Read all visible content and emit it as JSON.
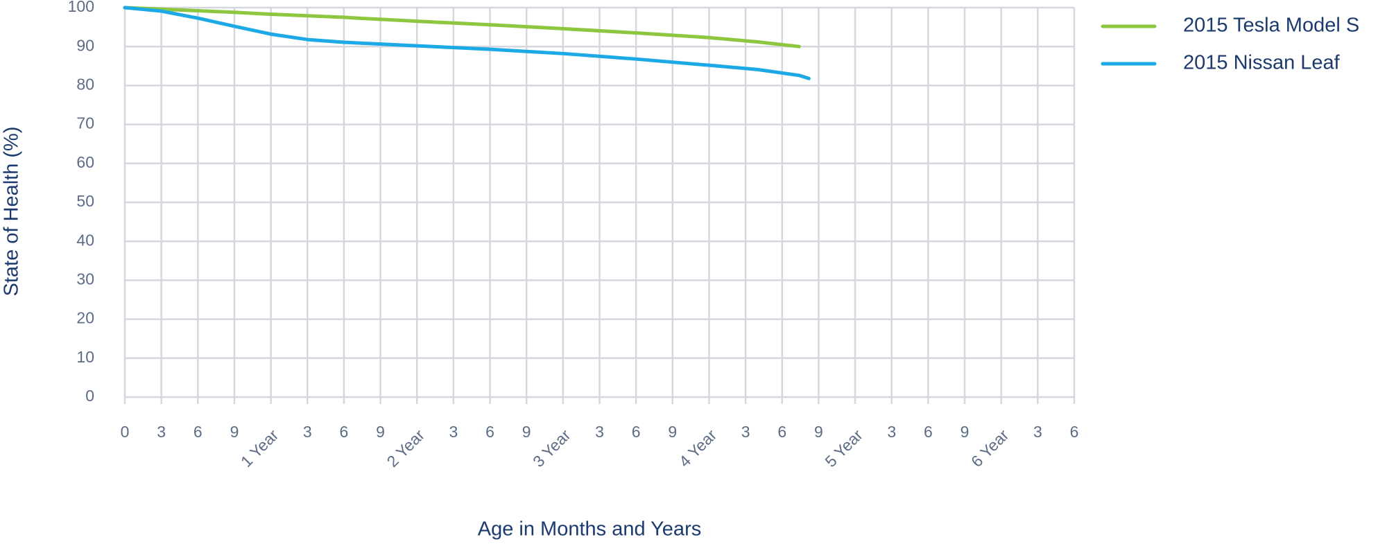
{
  "chart_data": {
    "type": "line",
    "x_label": "Age in Months and Years",
    "y_label": "State of Health (%)",
    "x": [
      0,
      3,
      6,
      9,
      12,
      15,
      18,
      24,
      30,
      36,
      42,
      48,
      52,
      55.4,
      56.2
    ],
    "series": [
      {
        "name": "2015 Tesla Model S",
        "color": "#8dc63f",
        "values": [
          100,
          99.6,
          99.2,
          98.8,
          98.3,
          97.9,
          97.5,
          96.5,
          95.6,
          94.6,
          93.5,
          92.3,
          91.2,
          90,
          null
        ]
      },
      {
        "name": "2015 Nissan Leaf",
        "color": "#1ca9e6",
        "values": [
          100,
          99.1,
          97.3,
          95.2,
          93.2,
          91.8,
          91.1,
          90.2,
          89.3,
          88.2,
          86.8,
          85.2,
          84.1,
          82.6,
          81.8
        ]
      }
    ],
    "xlim": [
      0,
      78
    ],
    "xticks": [
      0,
      3,
      6,
      9,
      {
        "value": 12,
        "label": "1 Year"
      },
      {
        "value": 15,
        "label": "3"
      },
      {
        "value": 18,
        "label": "6"
      },
      {
        "value": 21,
        "label": "9"
      },
      {
        "value": 24,
        "label": "2 Year"
      },
      {
        "value": 27,
        "label": "3"
      },
      {
        "value": 30,
        "label": "6"
      },
      {
        "value": 33,
        "label": "9"
      },
      {
        "value": 36,
        "label": "3 Year"
      },
      {
        "value": 39,
        "label": "3"
      },
      {
        "value": 42,
        "label": "6"
      },
      {
        "value": 45,
        "label": "9"
      },
      {
        "value": 48,
        "label": "4 Year"
      },
      {
        "value": 51,
        "label": "3"
      },
      {
        "value": 54,
        "label": "6"
      },
      {
        "value": 57,
        "label": "9"
      },
      {
        "value": 60,
        "label": "5 Year"
      },
      {
        "value": 63,
        "label": "3"
      },
      {
        "value": 66,
        "label": "6"
      },
      {
        "value": 69,
        "label": "9"
      },
      {
        "value": 72,
        "label": "6 Year"
      },
      {
        "value": 75,
        "label": "3"
      },
      {
        "value": 78,
        "label": "6"
      }
    ],
    "ylim": [
      0,
      100
    ],
    "yticks": [
      0,
      10,
      20,
      30,
      40,
      50,
      60,
      70,
      80,
      90,
      100
    ],
    "grid": true,
    "legend": "right"
  }
}
